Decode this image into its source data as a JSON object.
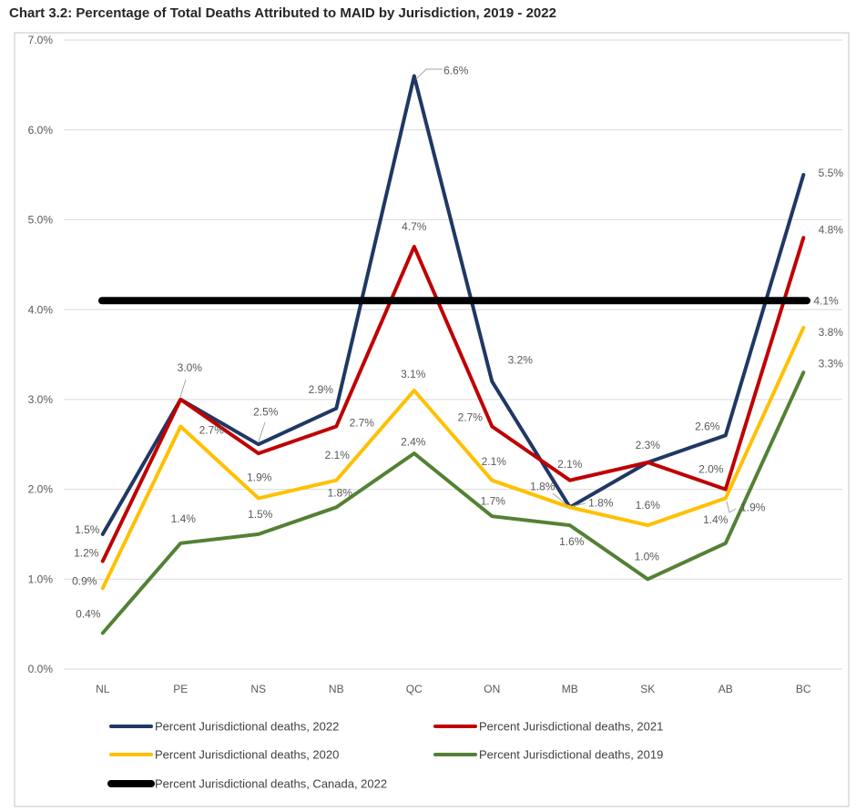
{
  "title": "Chart 3.2: Percentage of Total Deaths Attributed to MAID by Jurisdiction, 2019 - 2022",
  "chart_data": {
    "type": "line",
    "title": "Chart 3.2: Percentage of Total Deaths Attributed to MAID by Jurisdiction, 2019 - 2022",
    "categories": [
      "NL",
      "PE",
      "NS",
      "NB",
      "QC",
      "ON",
      "MB",
      "SK",
      "AB",
      "BC"
    ],
    "y_axis": {
      "min": 0,
      "max": 7,
      "unit": "percent",
      "ticks": [
        "0.0%",
        "1.0%",
        "2.0%",
        "3.0%",
        "4.0%",
        "5.0%",
        "6.0%",
        "7.0%"
      ]
    },
    "grid": true,
    "legend_position": "bottom",
    "series": [
      {
        "key": "2022",
        "name": "Percent Jurisdictional deaths, 2022",
        "color": "#1f3864",
        "values": [
          1.5,
          3.0,
          2.5,
          2.9,
          6.6,
          3.2,
          1.8,
          2.3,
          2.6,
          5.5
        ],
        "labels": [
          "1.5%",
          "3.0%",
          "2.5%",
          "2.9%",
          "6.6%",
          "3.2%",
          "1.8%",
          "2.3%",
          "2.6%",
          "5.5%"
        ]
      },
      {
        "key": "2021",
        "name": "Percent Jurisdictional deaths, 2021",
        "color": "#c00000",
        "values": [
          1.2,
          3.0,
          2.4,
          2.7,
          4.7,
          2.7,
          2.1,
          2.3,
          2.0,
          4.8
        ],
        "labels": [
          "1.2%",
          null,
          null,
          "2.7%",
          "4.7%",
          "2.7%",
          "2.1%",
          null,
          "2.0%",
          "4.8%"
        ]
      },
      {
        "key": "2020",
        "name": "Percent Jurisdictional deaths, 2020",
        "color": "#ffc000",
        "values": [
          0.9,
          2.7,
          1.9,
          2.1,
          3.1,
          2.1,
          1.8,
          1.6,
          1.9,
          3.8
        ],
        "labels": [
          "0.9%",
          "2.7%",
          "1.9%",
          "2.1%",
          "3.1%",
          "2.1%",
          "1.8%",
          "1.6%",
          "1.9%",
          "3.8%"
        ]
      },
      {
        "key": "2019",
        "name": "Percent Jurisdictional deaths, 2019",
        "color": "#538135",
        "values": [
          0.4,
          1.4,
          1.5,
          1.8,
          2.4,
          1.7,
          1.6,
          1.0,
          1.4,
          3.3
        ],
        "labels": [
          "0.4%",
          "1.4%",
          "1.5%",
          "1.8%",
          "2.4%",
          "1.7%",
          "1.6%",
          "1.0%",
          "1.4%",
          "3.3%"
        ]
      },
      {
        "key": "canada-2022",
        "name": "Percent Jurisdictional deaths, Canada, 2022",
        "color": "#000000",
        "constant_value": 4.1,
        "label": "4.1%"
      }
    ]
  }
}
